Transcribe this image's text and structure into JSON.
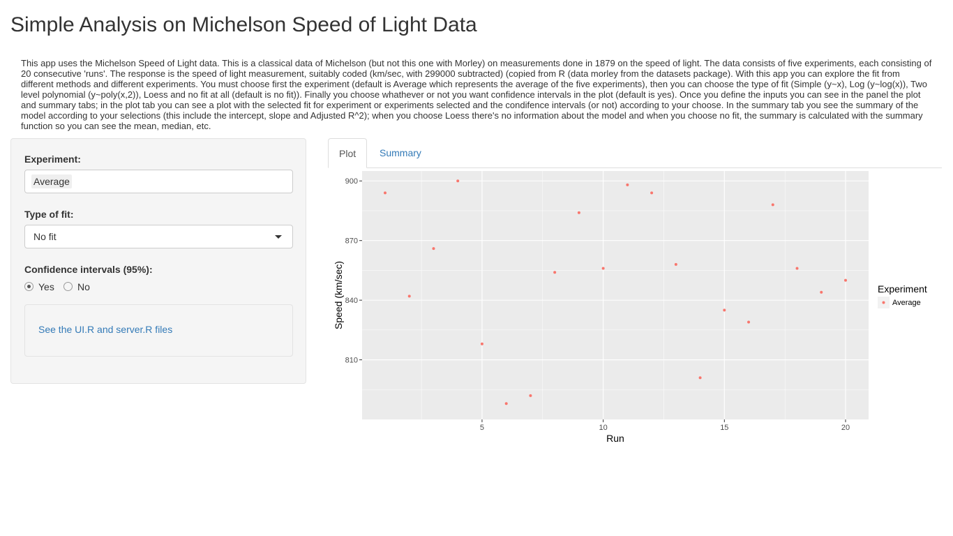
{
  "page": {
    "title": "Simple Analysis on Michelson Speed of Light Data",
    "description": "This app uses the Michelson Speed of Light data. This is a classical data of Michelson (but not this one with Morley) on measurements done in 1879 on the speed of light. The data consists of five experiments, each consisting of 20 consecutive 'runs'. The response is the speed of light measurement, suitably coded (km/sec, with 299000 subtracted) (copied from R (data morley from the datasets package). With this app you can explore the fit from different methods and different experiments. You must choose first the experiment (default is Average which represents the average of the five experiments), then you can choose the type of fit (Simple (y~x), Log (y~log(x)), Two level polynomial (y~poly(x,2)), Loess and no fit at all (default is no fit)). Finally you choose whathever or not you want confidence intervals in the plot (default is yes). Once you define the inputs you can see in the panel the plot and summary tabs; in the plot tab you can see a plot with the selected fit for experiment or experiments selected and the condifence intervals (or not) according to your choose. In the summary tab you see the summary of the model according to your selections (this include the intercept, slope and Adjusted R^2); when you choose Loess there's no information about the model and when you choose no fit, the summary is calculated with the summary function so you can see the mean, median, etc."
  },
  "sidebar": {
    "experiment_label": "Experiment:",
    "experiment_value": "Average",
    "fit_label": "Type of fit:",
    "fit_value": "No fit",
    "ci_label": "Confidence intervals (95%):",
    "ci_options": [
      {
        "label": "Yes",
        "checked": true
      },
      {
        "label": "No",
        "checked": false
      }
    ],
    "link_text": "See the UI.R and server.R files"
  },
  "tabs": [
    {
      "label": "Plot",
      "active": true
    },
    {
      "label": "Summary",
      "active": false
    }
  ],
  "colors": {
    "point": "#F8766D",
    "panel_bg": "#EBEBEB",
    "grid": "#FFFFFF",
    "link": "#337AB7"
  },
  "chart_data": {
    "type": "scatter",
    "xlabel": "Run",
    "ylabel": "Speed (km/sec)",
    "xlim": [
      0.05,
      20.95
    ],
    "ylim": [
      780,
      905
    ],
    "x_ticks": [
      5,
      10,
      15,
      20
    ],
    "y_ticks": [
      810,
      840,
      870,
      900
    ],
    "grid": true,
    "legend": {
      "title": "Experiment",
      "position": "right"
    },
    "series": [
      {
        "name": "Average",
        "x": [
          1,
          2,
          3,
          4,
          5,
          6,
          7,
          8,
          9,
          10,
          11,
          12,
          13,
          14,
          15,
          16,
          17,
          18,
          19,
          20
        ],
        "y": [
          894,
          842,
          866,
          900,
          818,
          788,
          792,
          854,
          884,
          856,
          898,
          894,
          858,
          801,
          835,
          829,
          888,
          856,
          844,
          850
        ]
      }
    ]
  }
}
